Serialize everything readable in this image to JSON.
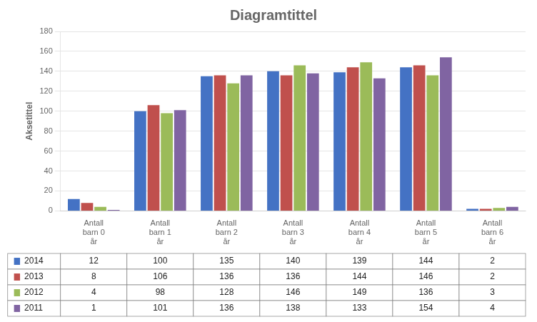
{
  "chart_data": {
    "type": "bar",
    "title": "Diagramtittel",
    "ylabel": "Aksetittel",
    "categories": [
      "Antall\nbarn 0\når",
      "Antall\nbarn 1\når",
      "Antall\nbarn 2\når",
      "Antall\nbarn 3\når",
      "Antall\nbarn 4\når",
      "Antall\nbarn 5\når",
      "Antall\nbarn 6\når"
    ],
    "series": [
      {
        "name": "2014",
        "color": "#4472C4",
        "values": [
          12,
          100,
          135,
          140,
          139,
          144,
          2
        ]
      },
      {
        "name": "2013",
        "color": "#C0504D",
        "values": [
          8,
          106,
          136,
          136,
          144,
          146,
          2
        ]
      },
      {
        "name": "2012",
        "color": "#9BBB59",
        "values": [
          4,
          98,
          128,
          146,
          149,
          136,
          3
        ]
      },
      {
        "name": "2011",
        "color": "#8064A2",
        "values": [
          1,
          101,
          136,
          138,
          133,
          154,
          4
        ]
      }
    ],
    "ylim": [
      0,
      180
    ],
    "yticks": [
      0,
      20,
      40,
      60,
      80,
      100,
      120,
      140,
      160,
      180
    ],
    "grid": true
  }
}
